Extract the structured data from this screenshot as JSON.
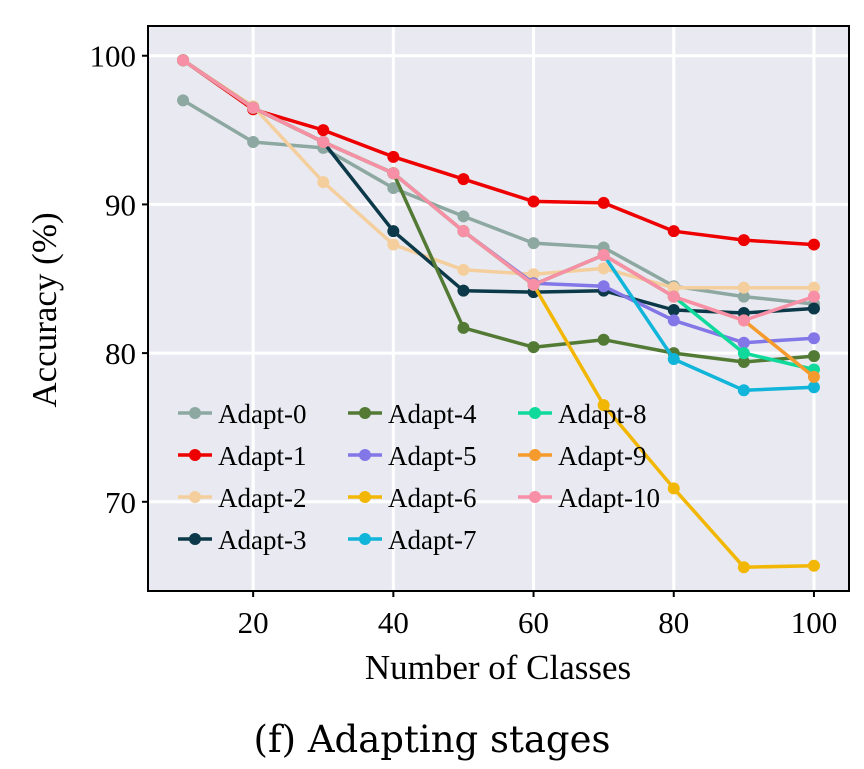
{
  "caption": "(f) Adapting stages",
  "chart_data": {
    "type": "line",
    "xlabel": "Number of Classes",
    "ylabel": "Accuracy (%)",
    "xlim": [
      5,
      105
    ],
    "ylim": [
      64,
      102
    ],
    "xticks": [
      20,
      40,
      60,
      80,
      100
    ],
    "yticks": [
      70,
      80,
      90,
      100
    ],
    "grid": true,
    "legend_position": "lower-left",
    "legend_columns": 3,
    "x": [
      10,
      20,
      30,
      40,
      50,
      60,
      70,
      80,
      90,
      100
    ],
    "series": [
      {
        "name": "Adapt-0",
        "color": "#8da8a1",
        "values": [
          97.0,
          94.2,
          93.8,
          91.1,
          89.2,
          87.4,
          87.1,
          84.5,
          83.8,
          83.3
        ]
      },
      {
        "name": "Adapt-1",
        "color": "#ee0000",
        "values": [
          99.7,
          96.4,
          95.0,
          93.2,
          91.7,
          90.2,
          90.1,
          88.2,
          87.6,
          87.3
        ]
      },
      {
        "name": "Adapt-2",
        "color": "#f4cf9d",
        "values": [
          99.7,
          96.6,
          91.5,
          87.3,
          85.6,
          85.3,
          85.7,
          84.4,
          84.4,
          84.4
        ]
      },
      {
        "name": "Adapt-3",
        "color": "#0c3949",
        "values": [
          99.7,
          96.5,
          94.2,
          88.2,
          84.2,
          84.1,
          84.2,
          82.9,
          82.7,
          83.0
        ]
      },
      {
        "name": "Adapt-4",
        "color": "#537a35",
        "values": [
          99.7,
          96.5,
          94.2,
          92.1,
          81.7,
          80.4,
          80.9,
          80.0,
          79.4,
          79.8
        ]
      },
      {
        "name": "Adapt-5",
        "color": "#8377e8",
        "values": [
          99.7,
          96.5,
          94.2,
          92.1,
          88.2,
          84.7,
          84.5,
          82.2,
          80.7,
          81.0
        ]
      },
      {
        "name": "Adapt-6",
        "color": "#f2b705",
        "values": [
          99.7,
          96.5,
          94.2,
          92.1,
          88.2,
          84.6,
          76.5,
          70.9,
          65.6,
          65.7
        ]
      },
      {
        "name": "Adapt-7",
        "color": "#10b5d9",
        "values": [
          99.7,
          96.5,
          94.2,
          92.1,
          88.2,
          84.6,
          86.6,
          79.6,
          77.5,
          77.7
        ]
      },
      {
        "name": "Adapt-8",
        "color": "#10d99c",
        "values": [
          99.7,
          96.5,
          94.2,
          92.1,
          88.2,
          84.6,
          86.6,
          83.8,
          80.0,
          78.9
        ]
      },
      {
        "name": "Adapt-9",
        "color": "#f59a2d",
        "values": [
          99.7,
          96.5,
          94.2,
          92.1,
          88.2,
          84.6,
          86.6,
          83.8,
          82.2,
          78.4
        ]
      },
      {
        "name": "Adapt-10",
        "color": "#f78fa7",
        "values": [
          99.7,
          96.5,
          94.2,
          92.1,
          88.2,
          84.6,
          86.6,
          83.8,
          82.2,
          83.8
        ]
      }
    ]
  }
}
